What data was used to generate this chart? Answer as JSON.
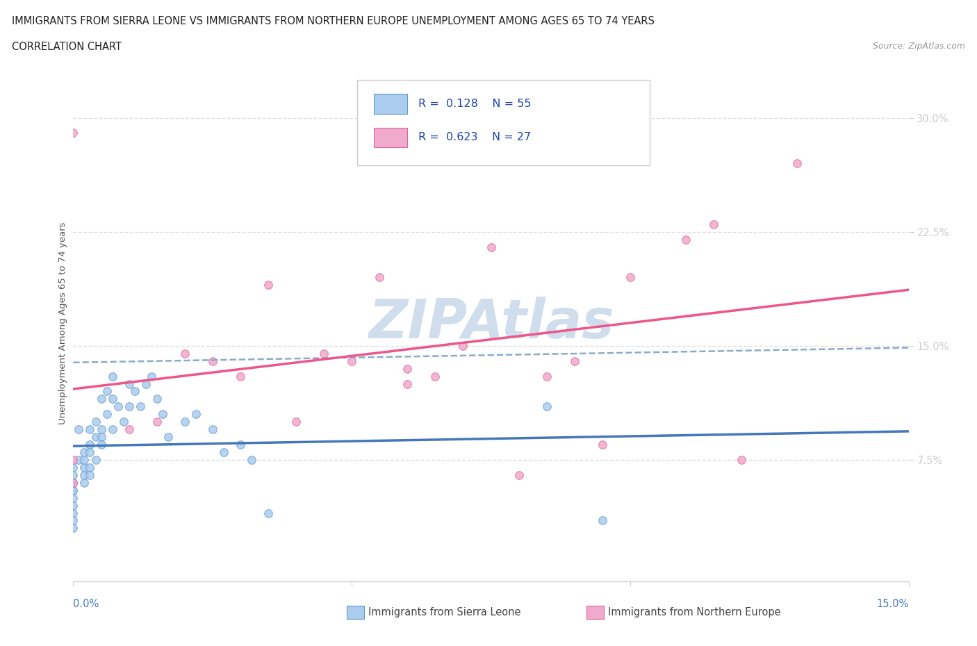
{
  "title_line1": "IMMIGRANTS FROM SIERRA LEONE VS IMMIGRANTS FROM NORTHERN EUROPE UNEMPLOYMENT AMONG AGES 65 TO 74 YEARS",
  "title_line2": "CORRELATION CHART",
  "source_text": "Source: ZipAtlas.com",
  "ylabel": "Unemployment Among Ages 65 to 74 years",
  "xlim": [
    0.0,
    0.15
  ],
  "ylim": [
    -0.005,
    0.335
  ],
  "ytick_labels_right": [
    "7.5%",
    "15.0%",
    "22.5%",
    "30.0%"
  ],
  "ytick_vals_right": [
    0.075,
    0.15,
    0.225,
    0.3
  ],
  "legend_R1": "0.128",
  "legend_N1": "55",
  "legend_R2": "0.623",
  "legend_N2": "27",
  "blue_color": "#aaccee",
  "pink_color": "#f0aacc",
  "blue_edge_color": "#6699cc",
  "pink_edge_color": "#dd6699",
  "blue_line_color": "#4477bb",
  "pink_line_color": "#ee5588",
  "blue_dash_color": "#88aacc",
  "watermark_color": "#c8d8ea",
  "grid_color": "#dddddd",
  "sl_x": [
    0.0,
    0.0,
    0.0,
    0.0,
    0.0,
    0.0,
    0.0,
    0.0,
    0.0,
    0.0,
    0.0,
    0.001,
    0.001,
    0.002,
    0.002,
    0.002,
    0.002,
    0.002,
    0.003,
    0.003,
    0.003,
    0.003,
    0.003,
    0.004,
    0.004,
    0.004,
    0.005,
    0.005,
    0.005,
    0.005,
    0.006,
    0.006,
    0.007,
    0.007,
    0.007,
    0.008,
    0.009,
    0.01,
    0.01,
    0.011,
    0.012,
    0.013,
    0.014,
    0.015,
    0.016,
    0.017,
    0.02,
    0.022,
    0.025,
    0.027,
    0.03,
    0.032,
    0.035,
    0.085,
    0.095
  ],
  "sl_y": [
    0.06,
    0.055,
    0.065,
    0.07,
    0.055,
    0.045,
    0.06,
    0.05,
    0.04,
    0.035,
    0.03,
    0.075,
    0.095,
    0.08,
    0.065,
    0.07,
    0.075,
    0.06,
    0.095,
    0.085,
    0.08,
    0.07,
    0.065,
    0.1,
    0.09,
    0.075,
    0.115,
    0.095,
    0.09,
    0.085,
    0.12,
    0.105,
    0.13,
    0.115,
    0.095,
    0.11,
    0.1,
    0.125,
    0.11,
    0.12,
    0.11,
    0.125,
    0.13,
    0.115,
    0.105,
    0.09,
    0.1,
    0.105,
    0.095,
    0.08,
    0.085,
    0.075,
    0.04,
    0.11,
    0.035
  ],
  "ne_x": [
    0.0,
    0.0,
    0.0,
    0.01,
    0.015,
    0.02,
    0.025,
    0.03,
    0.035,
    0.04,
    0.045,
    0.05,
    0.055,
    0.06,
    0.06,
    0.065,
    0.07,
    0.075,
    0.08,
    0.085,
    0.09,
    0.095,
    0.1,
    0.11,
    0.115,
    0.12,
    0.13
  ],
  "ne_y": [
    0.29,
    0.075,
    0.06,
    0.095,
    0.1,
    0.145,
    0.14,
    0.13,
    0.19,
    0.1,
    0.145,
    0.14,
    0.195,
    0.135,
    0.125,
    0.13,
    0.15,
    0.215,
    0.065,
    0.13,
    0.14,
    0.085,
    0.195,
    0.22,
    0.23,
    0.075,
    0.27
  ]
}
